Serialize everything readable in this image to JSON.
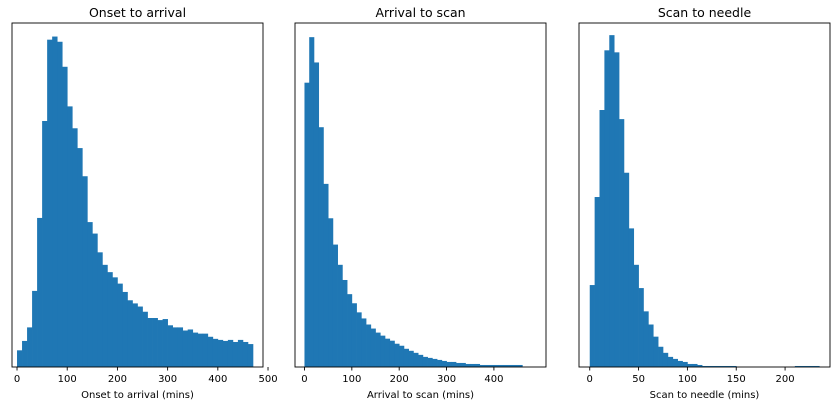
{
  "colors": {
    "bar": "#1f77b4",
    "axes": "#000000",
    "background": "#ffffff"
  },
  "chart_data": [
    {
      "type": "bar",
      "title": "Onset to arrival",
      "xlabel": "Onset to arrival (mins)",
      "ylabel": "",
      "y_axis_visible": false,
      "grid": false,
      "bin_width": 10,
      "bin_start": 0,
      "xlim": [
        -10,
        490
      ],
      "ylim": [
        0,
        330
      ],
      "xticks": [
        0,
        100,
        200,
        300,
        400,
        500
      ],
      "values": [
        16,
        25,
        38,
        73,
        143,
        236,
        314,
        317,
        312,
        288,
        250,
        229,
        210,
        183,
        139,
        128,
        110,
        98,
        91,
        86,
        80,
        72,
        64,
        61,
        58,
        53,
        47,
        47,
        45,
        46,
        40,
        38,
        38,
        35,
        36,
        33,
        32,
        32,
        29,
        27,
        26,
        25,
        26,
        24,
        26,
        24,
        22
      ]
    },
    {
      "type": "bar",
      "title": "Arrival to scan",
      "xlabel": "Arrival to scan (mins)",
      "ylabel": "",
      "y_axis_visible": false,
      "grid": false,
      "bin_width": 10,
      "bin_start": 0,
      "xlim": [
        -20,
        510
      ],
      "ylim": [
        0,
        340
      ],
      "xticks": [
        0,
        100,
        200,
        300,
        400
      ],
      "values": [
        281,
        326,
        301,
        237,
        181,
        147,
        121,
        101,
        86,
        72,
        63,
        54,
        48,
        42,
        38,
        34,
        31,
        28,
        26,
        23,
        21,
        18,
        16,
        14,
        12,
        10,
        9,
        8,
        7,
        6,
        5,
        5,
        4,
        4,
        3,
        3,
        3,
        2,
        2,
        2,
        2,
        2,
        2,
        2,
        2,
        2
      ]
    },
    {
      "type": "bar",
      "title": "Scan to needle",
      "xlabel": "Scan to needle (mins)",
      "ylabel": "",
      "y_axis_visible": false,
      "grid": false,
      "bin_width": 5,
      "bin_start": 0,
      "xlim": [
        -11,
        246
      ],
      "ylim": [
        0,
        340
      ],
      "xticks": [
        0,
        50,
        100,
        150,
        200
      ],
      "values": [
        81,
        168,
        254,
        313,
        328,
        311,
        245,
        192,
        137,
        101,
        78,
        55,
        42,
        30,
        20,
        14,
        10,
        8,
        6,
        5,
        3,
        3,
        2,
        1,
        1,
        1,
        1,
        1,
        1,
        1,
        0,
        0,
        0,
        0,
        0,
        0,
        0,
        0,
        0,
        0,
        0,
        0,
        1,
        1,
        1,
        1,
        1
      ]
    }
  ]
}
